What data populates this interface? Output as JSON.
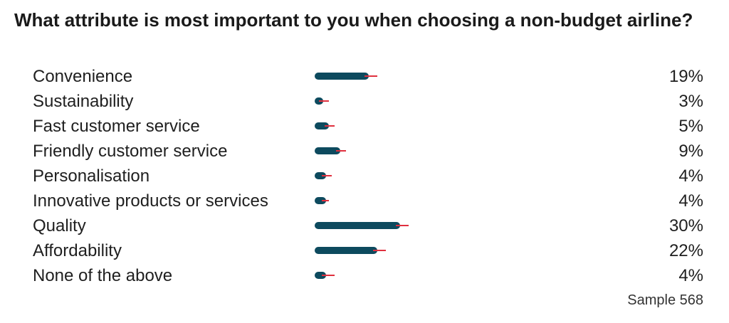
{
  "question": "What attribute is most important to you when choosing a non-budget airline?",
  "sample_text": "Sample 568",
  "colors": {
    "bar": "#0d4a5e",
    "error": "#e0303e"
  },
  "chart_data": {
    "type": "bar",
    "orientation": "horizontal",
    "title": "What attribute is most important to you when choosing a non-budget airline?",
    "categories": [
      "Convenience",
      "Sustainability",
      "Fast customer service",
      "Friendly customer service",
      "Personalisation",
      "Innovative products or services",
      "Quality",
      "Affordability",
      "None of the above"
    ],
    "values": [
      19,
      3,
      5,
      9,
      4,
      4,
      30,
      22,
      4
    ],
    "value_labels": [
      "19%",
      "3%",
      "5%",
      "9%",
      "4%",
      "4%",
      "30%",
      "22%",
      "4%"
    ],
    "error_high": [
      22,
      5,
      7,
      11,
      6,
      5,
      33,
      25,
      7
    ],
    "xlim": [
      0,
      100
    ],
    "grid": false,
    "legend": "none",
    "unit": "%",
    "sample": 568
  }
}
